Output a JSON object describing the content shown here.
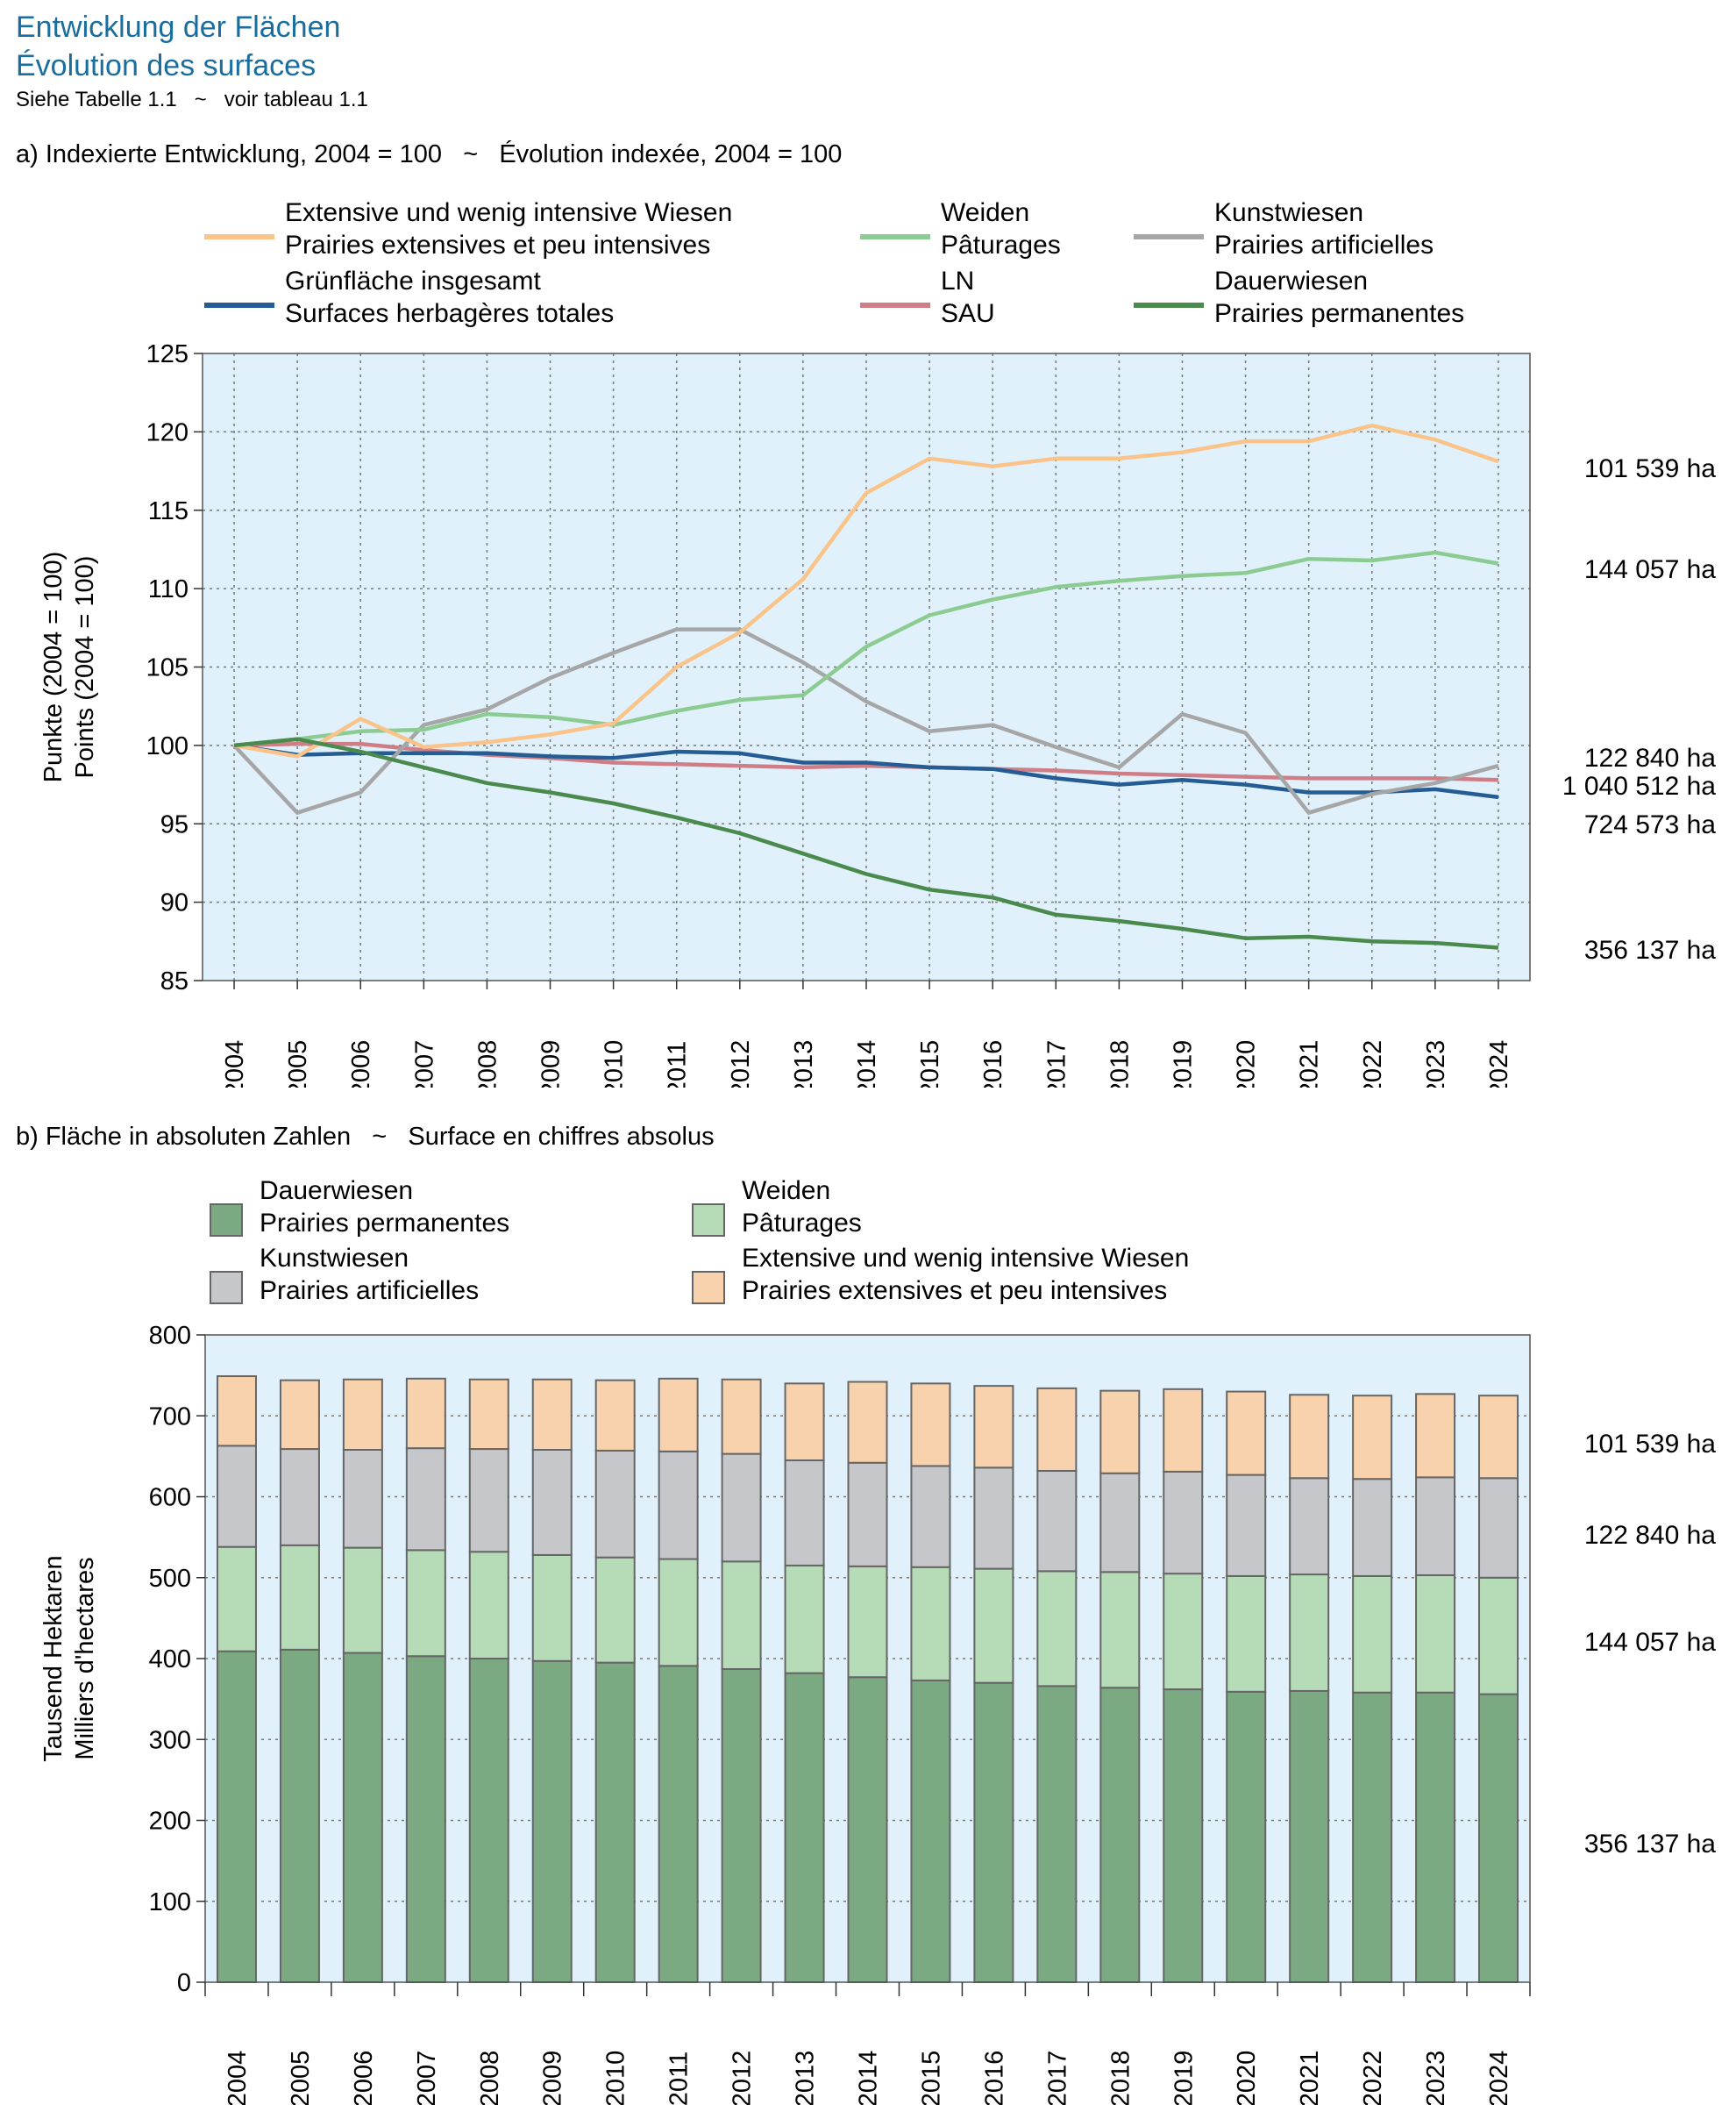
{
  "header": {
    "title_de": "Entwicklung der Flächen",
    "title_fr": "Évolution des surfaces",
    "subtitle": "Siehe Tabelle 1.1   ~   voir tableau 1.1"
  },
  "colors": {
    "extensive": "#f9c389",
    "weiden": "#8ccb92",
    "kunstwiesen": "#a6a6a6",
    "gruenflaeche": "#245c93",
    "ln": "#cf7d86",
    "dauerwiesen": "#4a8a4c",
    "plot_bg": "#e1f1fb",
    "bar_dauerwiesen": "#7aa982",
    "bar_weiden": "#b6dcb7",
    "bar_kunstwiesen": "#c6c7ca",
    "bar_extensive": "#f8d2ad"
  },
  "chart_data": [
    {
      "type": "line",
      "panel_label": "a) Indexierte Entwicklung, 2004 = 100   ~   Évolution indexée, 2004 = 100",
      "ylabel": [
        "Punkte (2004 = 100)",
        "Points (2004 = 100)"
      ],
      "ylim": [
        85,
        125
      ],
      "yticks": [
        85,
        90,
        95,
        100,
        105,
        110,
        115,
        120,
        125
      ],
      "grid": true,
      "legend_position": "top",
      "x": [
        "2004",
        "2005",
        "2006",
        "2007",
        "2008",
        "2009",
        "2010",
        "2011",
        "2012",
        "2013",
        "2014",
        "2015",
        "2016",
        "2017",
        "2018",
        "2019",
        "2020",
        "2021",
        "2022",
        "2023",
        "2024"
      ],
      "series": [
        {
          "key": "extensive",
          "name": [
            "Extensive und wenig intensive Wiesen",
            "Prairies extensives et peu intensives"
          ],
          "values": [
            100,
            99.3,
            101.7,
            99.9,
            100.2,
            100.7,
            101.4,
            105,
            107.2,
            110.6,
            116.1,
            118.3,
            117.8,
            118.3,
            118.3,
            118.7,
            119.4,
            119.4,
            120.4,
            119.5,
            118.1
          ]
        },
        {
          "key": "weiden",
          "name": [
            "Weiden",
            "Pâturages"
          ],
          "values": [
            100,
            100.4,
            100.9,
            101.0,
            102.0,
            101.8,
            101.3,
            102.2,
            102.9,
            103.2,
            106.3,
            108.3,
            109.3,
            110.1,
            110.5,
            110.8,
            111.0,
            111.9,
            111.8,
            112.3,
            111.6
          ]
        },
        {
          "key": "kunstwiesen",
          "name": [
            "Kunstwiesen",
            "Prairies artificielles"
          ],
          "values": [
            100,
            95.7,
            97.0,
            101.3,
            102.3,
            104.3,
            105.9,
            107.4,
            107.4,
            105.3,
            102.8,
            100.9,
            101.3,
            99.9,
            98.6,
            102.0,
            100.8,
            95.7,
            96.9,
            97.6,
            98.7
          ]
        },
        {
          "key": "gruenflaeche",
          "name": [
            "Grünfläche insgesamt",
            "Surfaces herbagères totales"
          ],
          "values": [
            100,
            99.4,
            99.5,
            99.5,
            99.5,
            99.3,
            99.2,
            99.6,
            99.5,
            98.9,
            98.9,
            98.6,
            98.5,
            97.9,
            97.5,
            97.8,
            97.5,
            97.0,
            97.0,
            97.2,
            96.7
          ]
        },
        {
          "key": "ln",
          "name": [
            "LN",
            "SAU"
          ],
          "values": [
            100,
            100.1,
            100.1,
            99.7,
            99.4,
            99.2,
            98.9,
            98.8,
            98.7,
            98.6,
            98.7,
            98.6,
            98.5,
            98.4,
            98.2,
            98.1,
            98.0,
            97.9,
            97.9,
            97.9,
            97.8
          ]
        },
        {
          "key": "dauerwiesen",
          "name": [
            "Dauerwiesen",
            "Prairies permanentes"
          ],
          "values": [
            100,
            100.4,
            99.6,
            98.6,
            97.6,
            97.0,
            96.3,
            95.4,
            94.4,
            93.1,
            91.8,
            90.8,
            90.3,
            89.2,
            88.8,
            88.3,
            87.7,
            87.8,
            87.5,
            87.4,
            87.1
          ]
        }
      ],
      "end_labels": [
        {
          "key": "extensive",
          "text": "101 539 ha"
        },
        {
          "key": "weiden",
          "text": "144 057 ha"
        },
        {
          "key": "kunstwiesen",
          "text": "122 840 ha"
        },
        {
          "key": "ln",
          "text": "1 040 512 ha"
        },
        {
          "key": "gruenflaeche",
          "text": "724 573 ha"
        },
        {
          "key": "dauerwiesen",
          "text": "356 137 ha"
        }
      ]
    },
    {
      "type": "bar",
      "stacked": true,
      "panel_label": "b) Fläche in absoluten Zahlen   ~   Surface en chiffres absolus",
      "ylabel": [
        "Tausend Hektaren",
        "Milliers d'hectares"
      ],
      "ylim": [
        0,
        800
      ],
      "yticks": [
        0,
        100,
        200,
        300,
        400,
        500,
        600,
        700,
        800
      ],
      "grid": true,
      "legend_position": "top",
      "categories": [
        "2004",
        "2005",
        "2006",
        "2007",
        "2008",
        "2009",
        "2010",
        "2011",
        "2012",
        "2013",
        "2014",
        "2015",
        "2016",
        "2017",
        "2018",
        "2019",
        "2020",
        "2021",
        "2022",
        "2023",
        "2024"
      ],
      "series": [
        {
          "key": "bar_dauerwiesen",
          "name": [
            "Dauerwiesen",
            "Prairies permanentes"
          ],
          "values": [
            409,
            411,
            407,
            403,
            400,
            397,
            395,
            391,
            387,
            382,
            377,
            373,
            370,
            366,
            364,
            362,
            359,
            360,
            358,
            358,
            356
          ]
        },
        {
          "key": "bar_weiden",
          "name": [
            "Weiden",
            "Pâturages"
          ],
          "values": [
            129,
            129,
            130,
            131,
            132,
            131,
            130,
            132,
            133,
            133,
            137,
            140,
            141,
            142,
            143,
            143,
            143,
            144,
            144,
            145,
            144
          ]
        },
        {
          "key": "bar_kunstwiesen",
          "name": [
            "Kunstwiesen",
            "Prairies artificielles"
          ],
          "values": [
            125,
            119,
            121,
            126,
            127,
            130,
            132,
            133,
            133,
            130,
            128,
            125,
            125,
            124,
            122,
            126,
            125,
            119,
            120,
            121,
            123
          ]
        },
        {
          "key": "bar_extensive",
          "name": [
            "Extensive und wenig intensive Wiesen",
            "Prairies extensives et peu intensives"
          ],
          "values": [
            86,
            85,
            87,
            86,
            86,
            87,
            87,
            90,
            92,
            95,
            100,
            102,
            101,
            102,
            102,
            102,
            103,
            103,
            103,
            103,
            102
          ]
        }
      ],
      "end_labels": [
        "101 539 ha",
        "122 840 ha",
        "144 057 ha",
        "356 137 ha"
      ]
    }
  ]
}
